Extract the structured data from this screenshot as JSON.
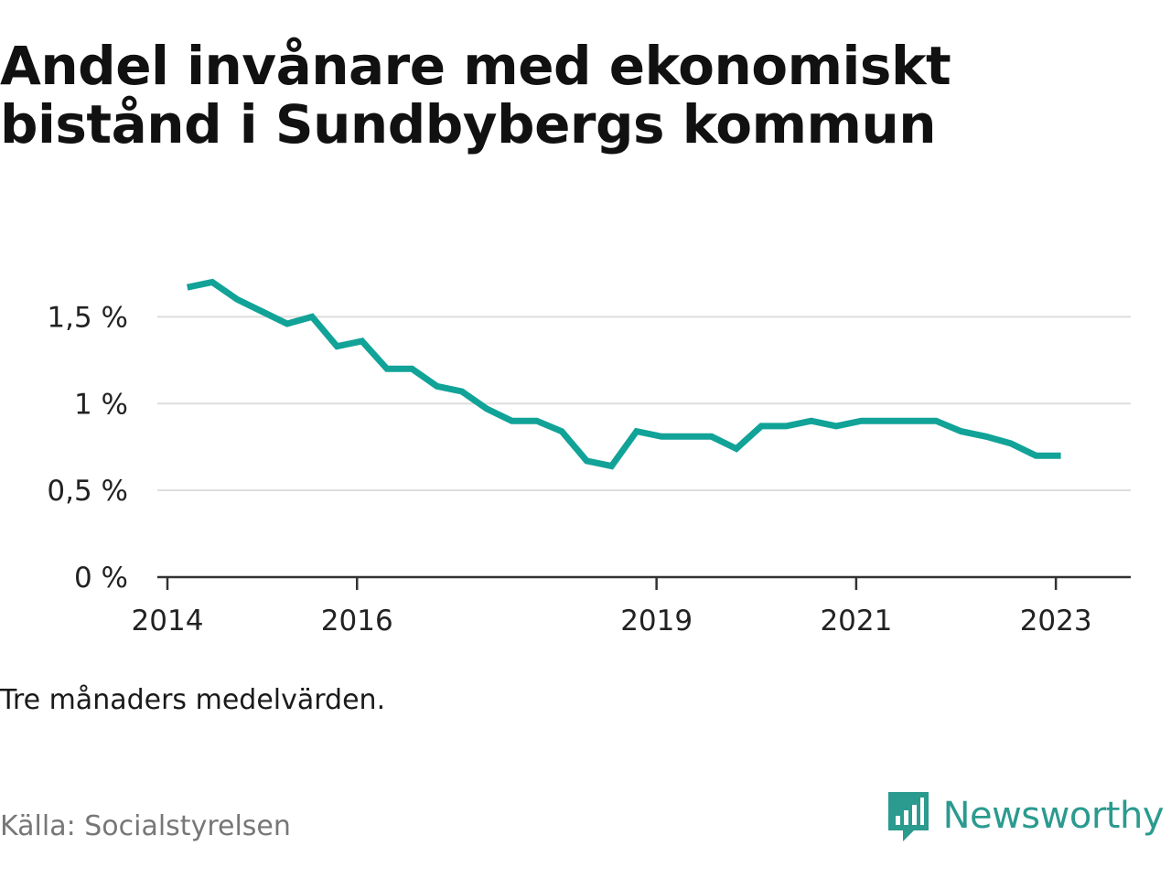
{
  "chart_data": {
    "type": "line",
    "title": "Andel invånare med ekonomiskt bistånd i Sundbybergs kommun",
    "subtitle": "",
    "xlabel": "",
    "ylabel": "",
    "note": "Tre månaders medelvärden.",
    "source": "Källa: Socialstyrelsen",
    "ylim": [
      0,
      1.85
    ],
    "xlim": [
      2014.0,
      2023.75
    ],
    "grid": true,
    "line_color": "#12a398",
    "y_ticks": [
      {
        "value": 0,
        "label": "0 %"
      },
      {
        "value": 0.5,
        "label": "0,5 %"
      },
      {
        "value": 1,
        "label": "1 %"
      },
      {
        "value": 1.5,
        "label": "1,5 %"
      }
    ],
    "x_ticks": [
      {
        "value": 2014.0,
        "label": "2014"
      },
      {
        "value": 2016.0,
        "label": "2016"
      },
      {
        "value": 2019.0,
        "label": "2019"
      },
      {
        "value": 2021.0,
        "label": "2021"
      },
      {
        "value": 2023.0,
        "label": "2023"
      }
    ],
    "series": [
      {
        "x": [
          2014.3,
          2014.55,
          2014.8,
          2015.05,
          2015.3,
          2015.55,
          2015.8,
          2016.05,
          2016.3,
          2016.55,
          2016.8,
          2017.05,
          2017.3,
          2017.55,
          2017.8,
          2018.05,
          2018.3,
          2018.55,
          2018.8,
          2019.05,
          2019.3,
          2019.55,
          2019.8,
          2020.05,
          2020.3,
          2020.55,
          2020.8,
          2021.05,
          2021.3,
          2021.55,
          2021.8,
          2022.05,
          2022.3,
          2022.55,
          2022.8,
          2023.05
        ],
        "values": [
          1.67,
          1.7,
          1.6,
          1.53,
          1.46,
          1.5,
          1.33,
          1.36,
          1.2,
          1.2,
          1.1,
          1.07,
          0.97,
          0.9,
          0.9,
          0.84,
          0.67,
          0.64,
          0.84,
          0.81,
          0.81,
          0.81,
          0.74,
          0.87,
          0.87,
          0.9,
          0.87,
          0.9,
          0.9,
          0.9,
          0.9,
          0.84,
          0.81,
          0.77,
          0.7,
          0.7
        ]
      }
    ]
  },
  "brand": {
    "name": "Newsworthy",
    "icon": "newsworthy-logo-icon",
    "color": "#2b9a8f"
  }
}
